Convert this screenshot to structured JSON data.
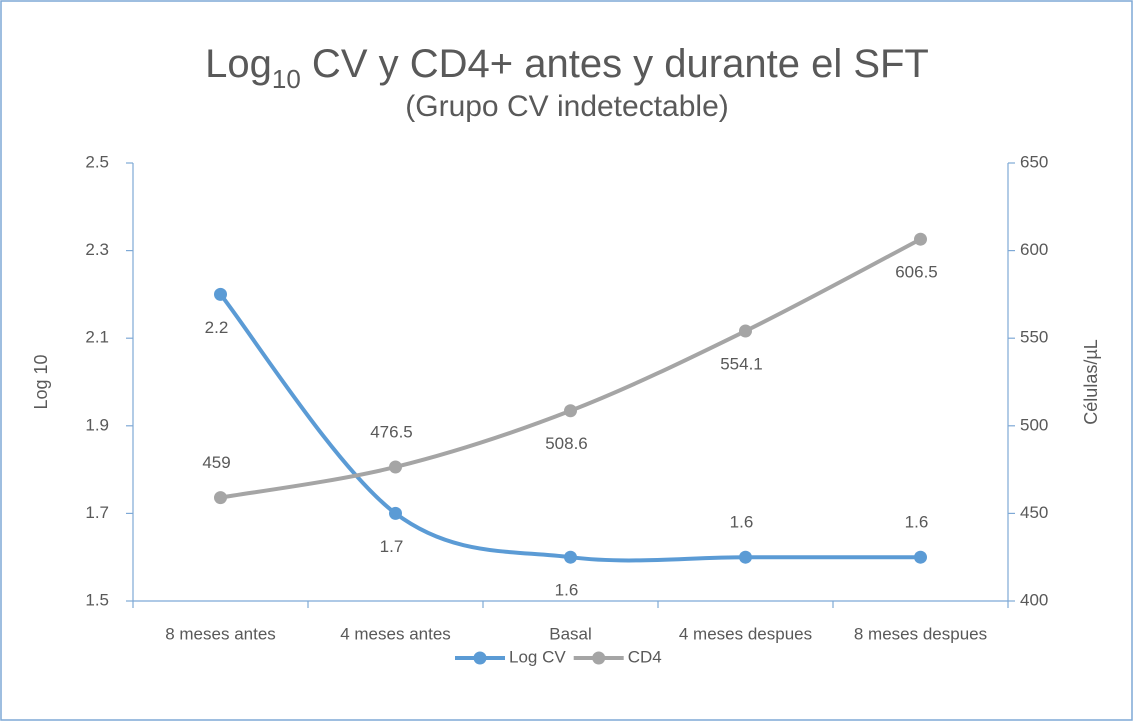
{
  "chart_data": {
    "type": "line",
    "title": [
      {
        "text": "Log"
      },
      {
        "text": "10",
        "subscript": true
      },
      {
        "text": " CV y CD4+ antes y durante el SFT"
      }
    ],
    "subtitle": "(Grupo CV indetectable)",
    "y_label": "Log 10",
    "y2_label": "Células/µL",
    "categories": [
      "8 meses antes",
      "4 meses antes",
      "Basal",
      "4 meses despues",
      "8 meses despues"
    ],
    "series": [
      {
        "name": "Log CV",
        "color": "#5b9bd5",
        "values": [
          2.2,
          1.7,
          1.6,
          1.6,
          1.6
        ]
      },
      {
        "name": "CD4",
        "color": "#a5a5a5",
        "axis": "y2",
        "values": [
          459,
          476.5,
          508.6,
          554.1,
          606.5
        ]
      }
    ],
    "ylim": [
      1.5,
      2.5
    ],
    "yticks": [
      1.5,
      1.7,
      1.9,
      2.1,
      2.3,
      2.5
    ],
    "y2lim": [
      400,
      650
    ],
    "y2ticks": [
      400,
      450,
      500,
      550,
      600,
      650
    ],
    "smooth": true,
    "legend": "bottom"
  }
}
